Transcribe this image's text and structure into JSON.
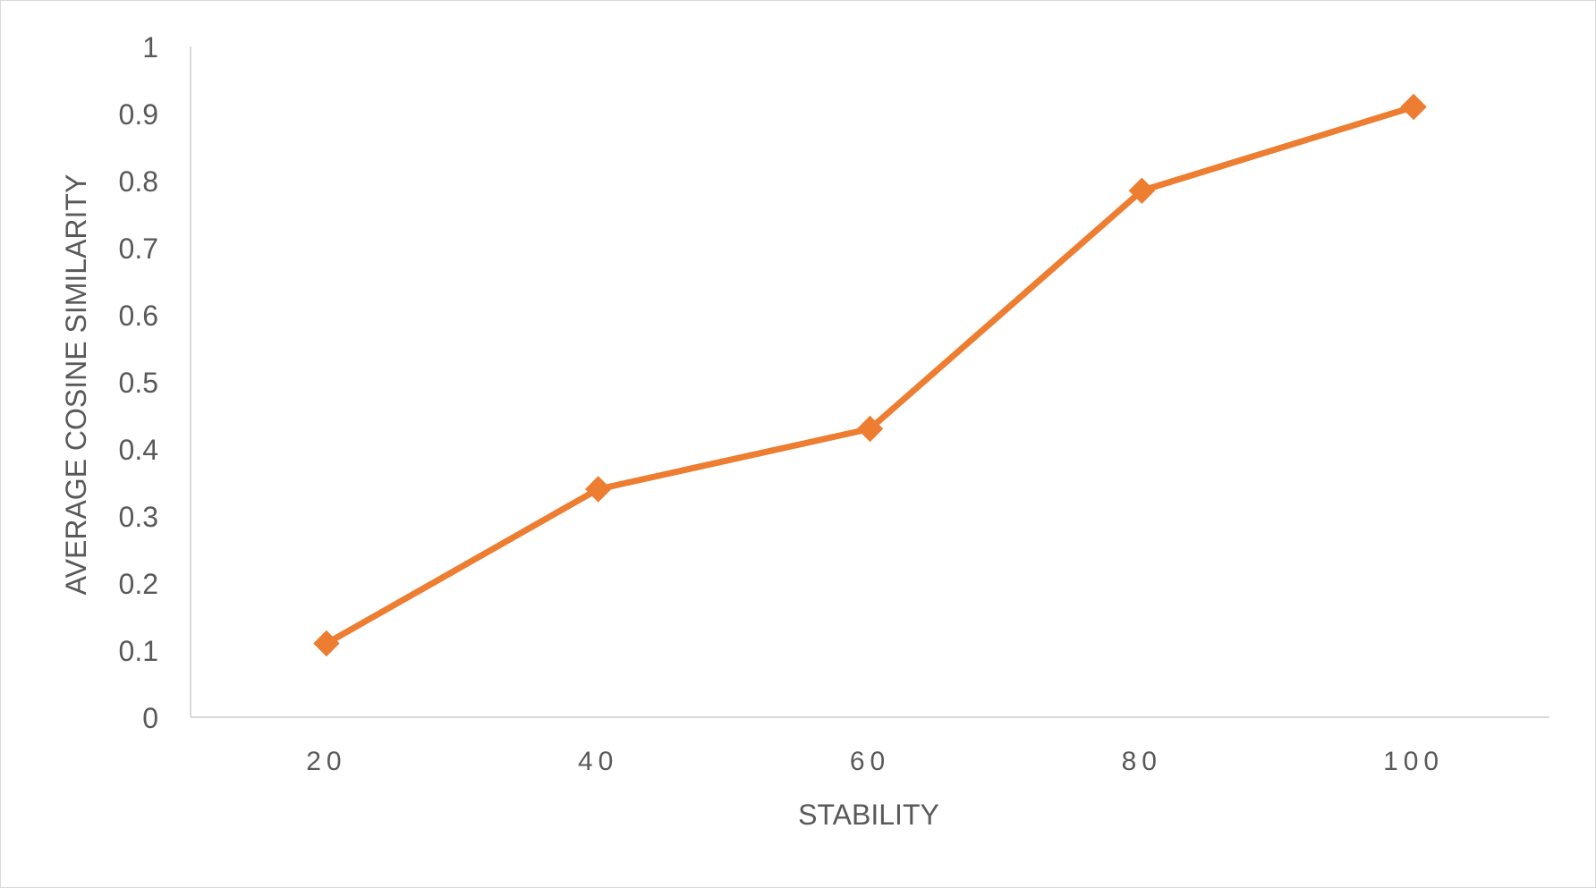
{
  "chart_data": {
    "type": "line",
    "title": "",
    "xlabel": "STABILITY",
    "ylabel": "AVERAGE COSINE SIMILARITY",
    "categories": [
      "20",
      "40",
      "60",
      "80",
      "100"
    ],
    "series": [
      {
        "values": [
          0.11,
          0.34,
          0.43,
          0.785,
          0.91
        ],
        "color": "#ED7D31",
        "marker": "diamond"
      }
    ],
    "ylim": [
      0,
      1
    ],
    "yticks": [
      "0",
      "0.1",
      "0.2",
      "0.3",
      "0.4",
      "0.5",
      "0.6",
      "0.7",
      "0.8",
      "0.9",
      "1"
    ],
    "grid": false,
    "legend": "none",
    "axis_color": "#d9d9d9",
    "text_color": "#595959"
  }
}
